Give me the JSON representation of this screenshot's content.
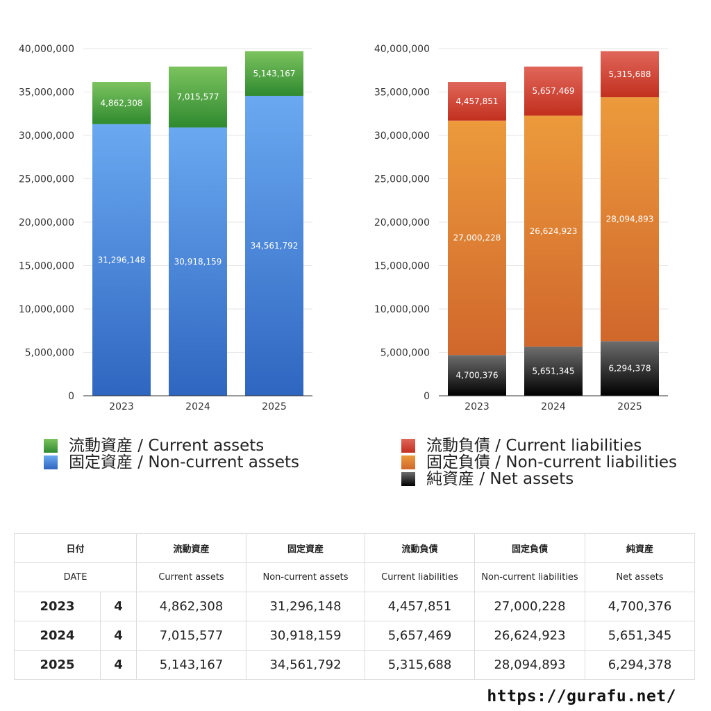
{
  "chart_data": [
    {
      "type": "bar",
      "stacked": true,
      "categories": [
        "2023",
        "2024",
        "2025"
      ],
      "series": [
        {
          "name": "固定資産 / Non-current assets",
          "values": [
            31296148,
            30918159,
            34561792
          ],
          "color_top": "#6aa9f1",
          "color_bottom": "#2f66c0"
        },
        {
          "name": "流動資産 / Current assets",
          "values": [
            4862308,
            7015577,
            5143167
          ],
          "color_top": "#7cc35f",
          "color_bottom": "#2f8a2f"
        }
      ],
      "ylim": [
        0,
        40000000
      ],
      "yticks": [
        "0",
        "5,000,000",
        "10,000,000",
        "15,000,000",
        "20,000,000",
        "25,000,000",
        "30,000,000",
        "35,000,000",
        "40,000,000"
      ],
      "data_labels": [
        [
          "31,296,148",
          "30,918,159",
          "34,561,792"
        ],
        [
          "4,862,308",
          "7,015,577",
          "5,143,167"
        ]
      ],
      "grid": true
    },
    {
      "type": "bar",
      "stacked": true,
      "categories": [
        "2023",
        "2024",
        "2025"
      ],
      "series": [
        {
          "name": "純資産 / Net assets",
          "values": [
            4700376,
            5651345,
            6294378
          ],
          "color_top": "#6e6e6e",
          "color_bottom": "#000000"
        },
        {
          "name": "固定負債 / Non-current liabilities",
          "values": [
            27000228,
            26624923,
            28094893
          ],
          "color_top": "#ec9a3c",
          "color_bottom": "#d0672c"
        },
        {
          "name": "流動負債 / Current liabilities",
          "values": [
            4457851,
            5657469,
            5315688
          ],
          "color_top": "#e0665a",
          "color_bottom": "#c2301e"
        }
      ],
      "ylim": [
        0,
        40000000
      ],
      "yticks": [
        "0",
        "5,000,000",
        "10,000,000",
        "15,000,000",
        "20,000,000",
        "25,000,000",
        "30,000,000",
        "35,000,000",
        "40,000,000"
      ],
      "data_labels": [
        [
          "4,700,376",
          "5,651,345",
          "6,294,378"
        ],
        [
          "27,000,228",
          "26,624,923",
          "28,094,893"
        ],
        [
          "4,457,851",
          "5,657,469",
          "5,315,688"
        ]
      ],
      "grid": true
    }
  ],
  "legend_left": [
    {
      "label": "流動資産 / Current assets",
      "color": "#4caa3c"
    },
    {
      "label": "固定資産 / Non-current assets",
      "color": "#3f86dc"
    }
  ],
  "legend_right": [
    {
      "label": "流動負債 / Current liabilities",
      "color": "#d9483a"
    },
    {
      "label": "固定負債 / Non-current liabilities",
      "color": "#e5832f"
    },
    {
      "label": "純資産 / Net assets",
      "color": "#222222"
    }
  ],
  "table": {
    "header_jp": [
      "日付",
      "流動資産",
      "固定資産",
      "流動負債",
      "固定負債",
      "純資産"
    ],
    "header_en": [
      "DATE",
      "Current assets",
      "Non-current assets",
      "Current liabilities",
      "Non-current liabilities",
      "Net assets"
    ],
    "rows": [
      {
        "year": "2023",
        "count": "4",
        "values": [
          "4,862,308",
          "31,296,148",
          "4,457,851",
          "27,000,228",
          "4,700,376"
        ]
      },
      {
        "year": "2024",
        "count": "4",
        "values": [
          "7,015,577",
          "30,918,159",
          "5,657,469",
          "26,624,923",
          "5,651,345"
        ]
      },
      {
        "year": "2025",
        "count": "4",
        "values": [
          "5,143,167",
          "34,561,792",
          "5,315,688",
          "28,094,893",
          "6,294,378"
        ]
      }
    ]
  },
  "footer_url": "https://gurafu.net/"
}
